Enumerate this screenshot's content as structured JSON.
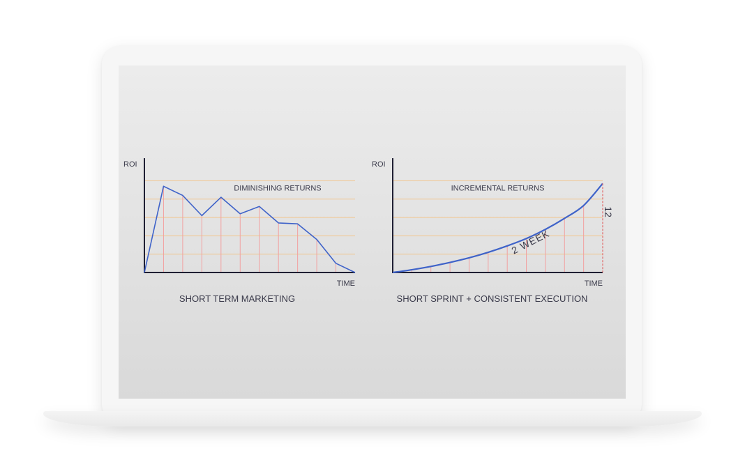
{
  "colors": {
    "line": "#3f63c9",
    "axis": "#1f1f33",
    "gridline": "#f2c48a",
    "dropline": "#f2a0a0",
    "text": "#3a3a4a"
  },
  "chart_data": [
    {
      "type": "line",
      "title": "SHORT TERM MARKETING",
      "xlabel": "TIME",
      "ylabel": "ROI",
      "annotation": "DIMINISHING RETURNS",
      "x": [
        0,
        1,
        2,
        3,
        4,
        5,
        6,
        7,
        8,
        9,
        10,
        11
      ],
      "series": [
        {
          "values": [
            0,
            4.7,
            4.2,
            3.1,
            4.1,
            3.2,
            3.6,
            2.7,
            2.65,
            1.8,
            0.5,
            0
          ]
        }
      ],
      "xlim": [
        0,
        11
      ],
      "ylim": [
        0,
        6
      ],
      "grid": "horizontal",
      "droplines": true
    },
    {
      "type": "line",
      "title": "SHORT SPRINT + CONSISTENT EXECUTION",
      "xlabel": "TIME",
      "ylabel": "ROI",
      "annotation": "INCREMENTAL RETURNS",
      "curve_label": "2 WEEK",
      "end_label": "12",
      "x": [
        0,
        1,
        2,
        3,
        4,
        5,
        6,
        7,
        8,
        9,
        10,
        11
      ],
      "series": [
        {
          "values": [
            0,
            0.15,
            0.33,
            0.55,
            0.8,
            1.1,
            1.45,
            1.85,
            2.35,
            2.95,
            3.65,
            4.85
          ]
        }
      ],
      "xlim": [
        0,
        11
      ],
      "ylim": [
        0,
        6
      ],
      "grid": "horizontal",
      "droplines": true
    }
  ]
}
